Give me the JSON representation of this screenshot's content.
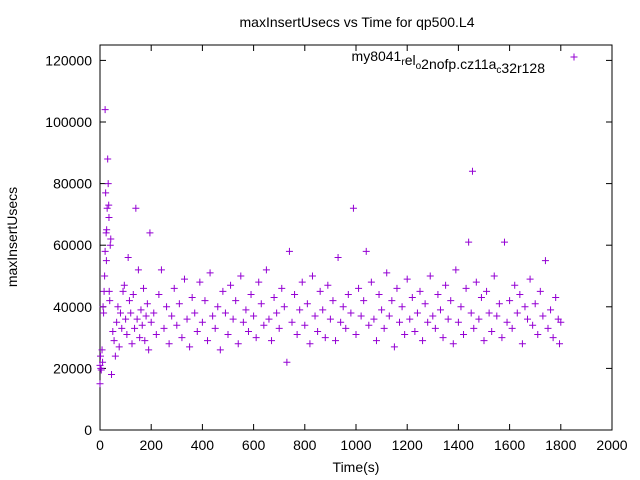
{
  "chart_data": {
    "type": "scatter",
    "title": "maxInsertUsecs vs Time for qp500.L4",
    "xlabel": "Time(s)",
    "ylabel": "maxInsertUsecs",
    "xlim": [
      0,
      2000
    ],
    "ylim": [
      0,
      125000
    ],
    "xticks": [
      "0",
      "200",
      "400",
      "600",
      "800",
      "1000",
      "1200",
      "1400",
      "1600",
      "1800",
      "2000"
    ],
    "yticks": [
      "0",
      "20000",
      "40000",
      "60000",
      "80000",
      "100000",
      "120000"
    ],
    "legend_position": "top-right",
    "marker": "plus",
    "color": "#9400d3",
    "series": [
      {
        "name_parts": [
          {
            "text": "my8041",
            "sub": false
          },
          {
            "text": "r",
            "sub": true
          },
          {
            "text": "el",
            "sub": false
          },
          {
            "text": "o",
            "sub": true
          },
          {
            "text": "2nofp.cz11a",
            "sub": false
          },
          {
            "text": "c",
            "sub": true
          },
          {
            "text": "32r128",
            "sub": false
          }
        ],
        "points": [
          [
            0,
            15000
          ],
          [
            0,
            21000
          ],
          [
            2,
            24000
          ],
          [
            3,
            20000
          ],
          [
            5,
            19500
          ],
          [
            8,
            26000
          ],
          [
            10,
            22000
          ],
          [
            12,
            40000
          ],
          [
            14,
            38000
          ],
          [
            16,
            45000
          ],
          [
            18,
            50000
          ],
          [
            20,
            58000
          ],
          [
            20,
            104000
          ],
          [
            22,
            77000
          ],
          [
            24,
            64000
          ],
          [
            25,
            55000
          ],
          [
            26,
            65000
          ],
          [
            28,
            72000
          ],
          [
            30,
            88000
          ],
          [
            32,
            80000
          ],
          [
            34,
            73000
          ],
          [
            35,
            69000
          ],
          [
            36,
            45000
          ],
          [
            38,
            42000
          ],
          [
            40,
            60000
          ],
          [
            42,
            62000
          ],
          [
            45,
            18000
          ],
          [
            50,
            32000
          ],
          [
            55,
            29000
          ],
          [
            60,
            24000
          ],
          [
            65,
            35000
          ],
          [
            70,
            40000
          ],
          [
            75,
            27000
          ],
          [
            80,
            38000
          ],
          [
            85,
            33000
          ],
          [
            90,
            45000
          ],
          [
            95,
            47000
          ],
          [
            100,
            36000
          ],
          [
            105,
            31000
          ],
          [
            110,
            56000
          ],
          [
            115,
            42000
          ],
          [
            120,
            38000
          ],
          [
            125,
            28000
          ],
          [
            130,
            44000
          ],
          [
            135,
            33000
          ],
          [
            140,
            72000
          ],
          [
            145,
            36000
          ],
          [
            150,
            52000
          ],
          [
            155,
            30000
          ],
          [
            160,
            39000
          ],
          [
            165,
            34000
          ],
          [
            170,
            46000
          ],
          [
            175,
            29000
          ],
          [
            180,
            37000
          ],
          [
            185,
            41000
          ],
          [
            190,
            26000
          ],
          [
            195,
            64000
          ],
          [
            200,
            35000
          ],
          [
            210,
            38000
          ],
          [
            220,
            31000
          ],
          [
            230,
            44000
          ],
          [
            240,
            52000
          ],
          [
            250,
            33000
          ],
          [
            260,
            40000
          ],
          [
            270,
            28000
          ],
          [
            280,
            37000
          ],
          [
            290,
            46000
          ],
          [
            300,
            34000
          ],
          [
            310,
            41000
          ],
          [
            320,
            30000
          ],
          [
            330,
            49000
          ],
          [
            340,
            36000
          ],
          [
            350,
            27000
          ],
          [
            360,
            43000
          ],
          [
            370,
            38000
          ],
          [
            380,
            32000
          ],
          [
            390,
            48000
          ],
          [
            400,
            35000
          ],
          [
            410,
            42000
          ],
          [
            420,
            29000
          ],
          [
            430,
            51000
          ],
          [
            440,
            37000
          ],
          [
            450,
            33000
          ],
          [
            460,
            40000
          ],
          [
            470,
            26000
          ],
          [
            480,
            45000
          ],
          [
            490,
            38000
          ],
          [
            500,
            31000
          ],
          [
            510,
            47000
          ],
          [
            520,
            36000
          ],
          [
            530,
            42000
          ],
          [
            540,
            28000
          ],
          [
            550,
            50000
          ],
          [
            560,
            35000
          ],
          [
            570,
            39000
          ],
          [
            580,
            32000
          ],
          [
            590,
            44000
          ],
          [
            600,
            37000
          ],
          [
            610,
            30000
          ],
          [
            620,
            48000
          ],
          [
            630,
            41000
          ],
          [
            640,
            34000
          ],
          [
            650,
            52000
          ],
          [
            660,
            36000
          ],
          [
            670,
            29000
          ],
          [
            680,
            43000
          ],
          [
            690,
            38000
          ],
          [
            700,
            33000
          ],
          [
            710,
            46000
          ],
          [
            720,
            40000
          ],
          [
            730,
            22000
          ],
          [
            740,
            58000
          ],
          [
            750,
            35000
          ],
          [
            760,
            44000
          ],
          [
            770,
            31000
          ],
          [
            780,
            39000
          ],
          [
            790,
            48000
          ],
          [
            800,
            34000
          ],
          [
            810,
            41000
          ],
          [
            820,
            28000
          ],
          [
            830,
            50000
          ],
          [
            840,
            37000
          ],
          [
            850,
            32000
          ],
          [
            860,
            45000
          ],
          [
            870,
            39000
          ],
          [
            880,
            30000
          ],
          [
            890,
            47000
          ],
          [
            900,
            36000
          ],
          [
            910,
            42000
          ],
          [
            920,
            29000
          ],
          [
            930,
            56000
          ],
          [
            940,
            35000
          ],
          [
            950,
            40000
          ],
          [
            960,
            33000
          ],
          [
            970,
            44000
          ],
          [
            980,
            38000
          ],
          [
            990,
            72000
          ],
          [
            1000,
            31000
          ],
          [
            1010,
            46000
          ],
          [
            1020,
            37000
          ],
          [
            1030,
            42000
          ],
          [
            1040,
            58000
          ],
          [
            1050,
            34000
          ],
          [
            1060,
            48000
          ],
          [
            1070,
            36000
          ],
          [
            1080,
            29000
          ],
          [
            1090,
            44000
          ],
          [
            1100,
            39000
          ],
          [
            1110,
            33000
          ],
          [
            1120,
            51000
          ],
          [
            1130,
            37000
          ],
          [
            1140,
            42000
          ],
          [
            1150,
            27000
          ],
          [
            1160,
            46000
          ],
          [
            1170,
            35000
          ],
          [
            1180,
            40000
          ],
          [
            1190,
            31000
          ],
          [
            1200,
            49000
          ],
          [
            1210,
            36000
          ],
          [
            1220,
            43000
          ],
          [
            1230,
            32000
          ],
          [
            1240,
            38000
          ],
          [
            1250,
            45000
          ],
          [
            1260,
            29000
          ],
          [
            1270,
            41000
          ],
          [
            1280,
            35000
          ],
          [
            1290,
            50000
          ],
          [
            1300,
            37000
          ],
          [
            1310,
            33000
          ],
          [
            1320,
            44000
          ],
          [
            1330,
            39000
          ],
          [
            1340,
            30000
          ],
          [
            1350,
            47000
          ],
          [
            1360,
            36000
          ],
          [
            1370,
            42000
          ],
          [
            1380,
            28000
          ],
          [
            1390,
            52000
          ],
          [
            1400,
            35000
          ],
          [
            1410,
            40000
          ],
          [
            1420,
            31000
          ],
          [
            1430,
            46000
          ],
          [
            1440,
            61000
          ],
          [
            1450,
            38000
          ],
          [
            1455,
            84000
          ],
          [
            1460,
            33000
          ],
          [
            1470,
            48000
          ],
          [
            1480,
            36000
          ],
          [
            1490,
            43000
          ],
          [
            1500,
            29000
          ],
          [
            1510,
            45000
          ],
          [
            1520,
            38000
          ],
          [
            1530,
            32000
          ],
          [
            1540,
            50000
          ],
          [
            1550,
            37000
          ],
          [
            1560,
            41000
          ],
          [
            1570,
            30000
          ],
          [
            1580,
            61000
          ],
          [
            1590,
            35000
          ],
          [
            1600,
            42000
          ],
          [
            1610,
            33000
          ],
          [
            1620,
            47000
          ],
          [
            1630,
            38000
          ],
          [
            1640,
            44000
          ],
          [
            1650,
            28000
          ],
          [
            1660,
            40000
          ],
          [
            1670,
            36000
          ],
          [
            1680,
            49000
          ],
          [
            1690,
            34000
          ],
          [
            1700,
            41000
          ],
          [
            1710,
            31000
          ],
          [
            1720,
            45000
          ],
          [
            1730,
            37000
          ],
          [
            1740,
            55000
          ],
          [
            1750,
            33000
          ],
          [
            1760,
            39000
          ],
          [
            1770,
            30000
          ],
          [
            1780,
            43000
          ],
          [
            1790,
            36000
          ],
          [
            1800,
            35000
          ],
          [
            1795,
            28000
          ]
        ]
      }
    ]
  }
}
